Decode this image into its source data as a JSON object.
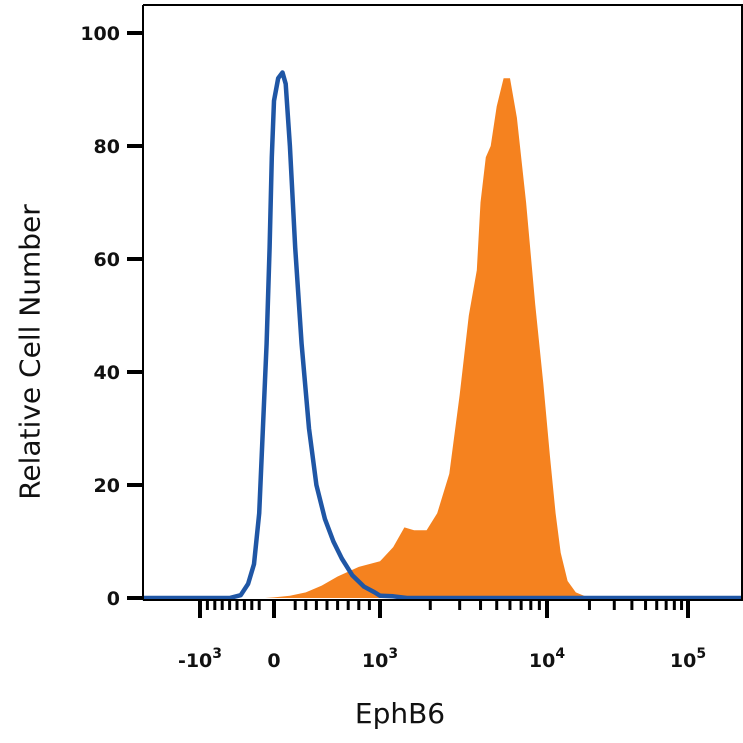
{
  "chart_data": {
    "type": "area",
    "xlabel": "EphB6",
    "ylabel": "Relative Cell Number",
    "ylim": [
      0,
      100
    ],
    "y_ticks": [
      "0",
      "20",
      "40",
      "60",
      "80",
      "100"
    ],
    "x_scale": "biexponential",
    "x_tick_labels": [
      {
        "value": -1000,
        "base": "-10",
        "exp": "3"
      },
      {
        "value": 0,
        "base": "0",
        "exp": ""
      },
      {
        "value": 1000,
        "base": "10",
        "exp": "3"
      },
      {
        "value": 10000,
        "base": "10",
        "exp": "4"
      },
      {
        "value": 100000,
        "base": "10",
        "exp": "5"
      }
    ],
    "grid": false,
    "series": [
      {
        "style": "filled",
        "color": "#F5821F",
        "points": [
          [
            -120,
            0
          ],
          [
            0,
            0.1
          ],
          [
            150,
            0.4
          ],
          [
            300,
            1
          ],
          [
            450,
            2.2
          ],
          [
            600,
            3.8
          ],
          [
            800,
            5.5
          ],
          [
            1000,
            6.5
          ],
          [
            1200,
            9
          ],
          [
            1400,
            12.5
          ],
          [
            1600,
            12
          ],
          [
            1900,
            12
          ],
          [
            2200,
            15
          ],
          [
            2600,
            22
          ],
          [
            3000,
            36
          ],
          [
            3400,
            50
          ],
          [
            3800,
            58
          ],
          [
            4000,
            70
          ],
          [
            4300,
            78
          ],
          [
            4600,
            80
          ],
          [
            5000,
            87
          ],
          [
            5500,
            92
          ],
          [
            6000,
            92
          ],
          [
            6600,
            85
          ],
          [
            7500,
            70
          ],
          [
            8500,
            52
          ],
          [
            9500,
            38
          ],
          [
            10500,
            25
          ],
          [
            11500,
            15
          ],
          [
            12500,
            8
          ],
          [
            14000,
            3
          ],
          [
            16000,
            1
          ],
          [
            20000,
            0
          ],
          [
            30000,
            0
          ]
        ]
      },
      {
        "style": "outline",
        "color": "#1F56A5",
        "points": [
          [
            -600,
            0
          ],
          [
            -450,
            0.5
          ],
          [
            -350,
            2.5
          ],
          [
            -270,
            6
          ],
          [
            -200,
            15
          ],
          [
            -150,
            30
          ],
          [
            -100,
            45
          ],
          [
            -60,
            62
          ],
          [
            -30,
            78
          ],
          [
            0,
            88
          ],
          [
            40,
            92
          ],
          [
            80,
            93
          ],
          [
            110,
            91
          ],
          [
            150,
            80
          ],
          [
            200,
            62
          ],
          [
            260,
            45
          ],
          [
            330,
            30
          ],
          [
            400,
            20
          ],
          [
            480,
            14
          ],
          [
            560,
            10
          ],
          [
            640,
            7
          ],
          [
            740,
            4
          ],
          [
            850,
            2
          ],
          [
            950,
            1
          ],
          [
            1000,
            0.4
          ],
          [
            1200,
            0.3
          ],
          [
            1450,
            0
          ],
          [
            3000,
            0
          ]
        ]
      }
    ]
  }
}
